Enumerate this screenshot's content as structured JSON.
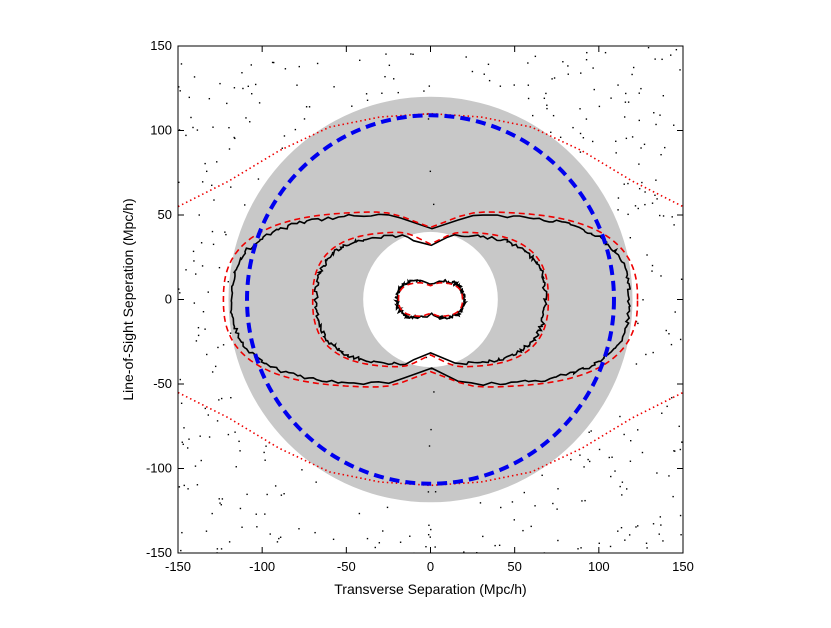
{
  "chart_data": {
    "type": "contour",
    "title": "",
    "xlabel": "Transverse Separation (Mpc/h)",
    "ylabel": "Line-of-Sight Seperation (Mpc/h)",
    "xlim": [
      -150,
      150
    ],
    "ylim": [
      -150,
      150
    ],
    "xticks": [
      -150,
      -100,
      -50,
      0,
      50,
      100,
      150
    ],
    "yticks": [
      -150,
      -100,
      -50,
      0,
      50,
      100,
      150
    ],
    "xtick_labels": [
      "-150",
      "-100",
      "-50",
      "0",
      "50",
      "100",
      "150"
    ],
    "ytick_labels": [
      "-150",
      "-100",
      "-50",
      "0",
      "50",
      "100",
      "150"
    ],
    "grid": false,
    "shaded_annulus": {
      "inner_radius": 40,
      "outer_radius": 120,
      "color": "#c8c8c8"
    },
    "circle": {
      "radius": 109,
      "color": "#0000ee",
      "style": "dashed"
    },
    "contours": [
      {
        "name": "inner-contour",
        "half_width_x": 20,
        "half_height_y": 11,
        "color": "#000000",
        "style": "solid"
      },
      {
        "name": "middle-contour",
        "half_width_x": 68,
        "half_height_y": 38,
        "color": "#000000",
        "style": "solid"
      },
      {
        "name": "outer-contour",
        "half_width_x": 118,
        "half_height_y": 50,
        "color": "#000000",
        "style": "solid"
      },
      {
        "name": "inner-model",
        "half_width_x": 19,
        "half_height_y": 10,
        "color": "#ee0000",
        "style": "dashed"
      },
      {
        "name": "middle-model",
        "half_width_x": 70,
        "half_height_y": 40,
        "color": "#ee0000",
        "style": "dashed"
      },
      {
        "name": "outer-model",
        "half_width_x": 123,
        "half_height_y": 52,
        "color": "#ee0000",
        "style": "dashed"
      }
    ],
    "dotted_model_arcs": {
      "color": "#ee0000",
      "points_upper": [
        [
          -150,
          55
        ],
        [
          -120,
          70
        ],
        [
          -90,
          88
        ],
        [
          -60,
          102
        ],
        [
          -30,
          108
        ],
        [
          0,
          110
        ],
        [
          30,
          108
        ],
        [
          60,
          102
        ],
        [
          90,
          88
        ],
        [
          120,
          70
        ],
        [
          150,
          55
        ]
      ]
    },
    "colors": {
      "annulus": "#c8c8c8",
      "circle": "#0000ee",
      "model": "#ee0000",
      "data": "#000000"
    }
  }
}
